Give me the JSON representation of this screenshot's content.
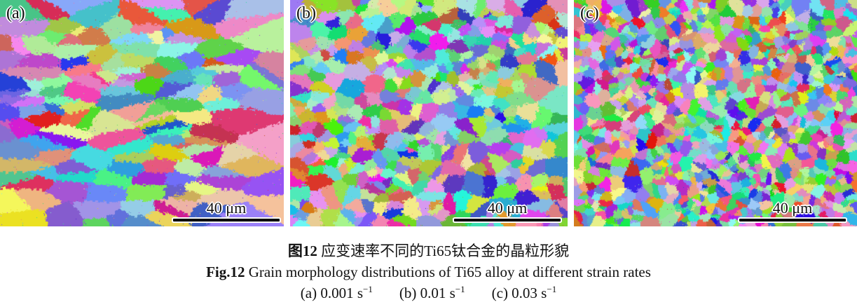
{
  "figure": {
    "panels": [
      {
        "label": "(a)",
        "scale_label": "40 μm",
        "strain_rate": "0.001 s⁻¹",
        "grain_texture": "coarse horizontally-elongated grains"
      },
      {
        "label": "(b)",
        "scale_label": "40 μm",
        "strain_rate": "0.01 s⁻¹",
        "grain_texture": "medium equiaxed grains"
      },
      {
        "label": "(c)",
        "scale_label": "40 μm",
        "strain_rate": "0.03 s⁻¹",
        "grain_texture": "fine equiaxed grains"
      }
    ],
    "caption_cn": {
      "bold": "图12",
      "rest": " 应变速率不同的Ti65钛合金的晶粒形貌"
    },
    "caption_en": {
      "bold": "Fig.12",
      "rest": " Grain morphology distributions of Ti65 alloy at different strain rates"
    },
    "subcaption": [
      {
        "base": "(a) 0.001 s",
        "sup": "−1"
      },
      {
        "base": "(b) 0.01 s",
        "sup": "−1"
      },
      {
        "base": "(c) 0.03 s",
        "sup": "−1"
      }
    ],
    "scalebar_color": "#000000",
    "halo_color": "#ffffff"
  }
}
